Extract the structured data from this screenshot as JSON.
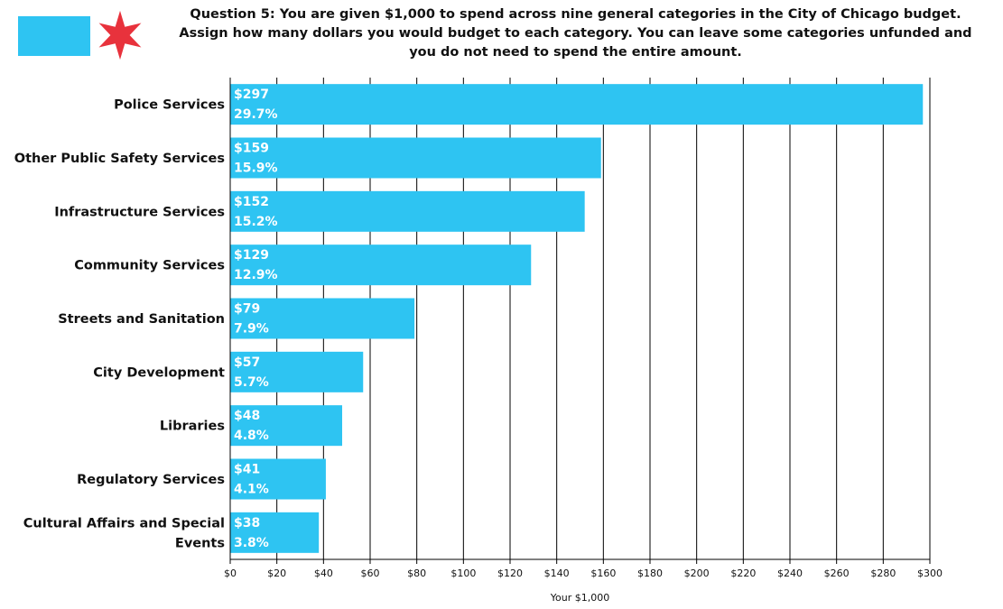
{
  "logo": {
    "icon": "chicago-flag-star-icon",
    "flag_color": "#2ec4f2",
    "star_color": "#e8323c"
  },
  "title_lines": [
    "Question 5: You are given $1,000 to spend across nine general categories in the City of Chicago budget.",
    "Assign how many dollars you would budget to each category. You can leave some categories unfunded and",
    "you do not need to spend the entire amount."
  ],
  "chart_data": {
    "type": "bar",
    "orientation": "horizontal",
    "title": "Question 5: You are given $1,000 to spend across nine general categories in the City of Chicago budget. Assign how many dollars you would budget to each category. You can leave some categories unfunded and you do not need to spend the entire amount.",
    "xlabel": "Your $1,000",
    "ylabel": "",
    "categories": [
      [
        "Police Services"
      ],
      [
        "Other Public Safety Services"
      ],
      [
        "Infrastructure Services"
      ],
      [
        "Community Services"
      ],
      [
        "Streets and Sanitation"
      ],
      [
        "City Development"
      ],
      [
        "Libraries"
      ],
      [
        "Regulatory Services"
      ],
      [
        "Cultural Affairs and Special",
        "Events"
      ]
    ],
    "values": [
      297,
      159,
      152,
      129,
      79,
      57,
      48,
      41,
      38
    ],
    "value_labels": [
      "$297",
      "$159",
      "$152",
      "$129",
      "$79",
      "$57",
      "$48",
      "$41",
      "$38"
    ],
    "percent_labels": [
      "29.7%",
      "15.9%",
      "15.2%",
      "12.9%",
      "7.9%",
      "5.7%",
      "4.8%",
      "4.1%",
      "3.8%"
    ],
    "xlim": [
      0,
      300
    ],
    "xticks": [
      0,
      20,
      40,
      60,
      80,
      100,
      120,
      140,
      160,
      180,
      200,
      220,
      240,
      260,
      280,
      300
    ],
    "xtick_labels": [
      "$0",
      "$20",
      "$40",
      "$60",
      "$80",
      "$100",
      "$120",
      "$140",
      "$160",
      "$180",
      "$200",
      "$220",
      "$240",
      "$260",
      "$280",
      "$300"
    ],
    "grid": true,
    "legend": "none",
    "bar_color": "#2ec4f2"
  }
}
